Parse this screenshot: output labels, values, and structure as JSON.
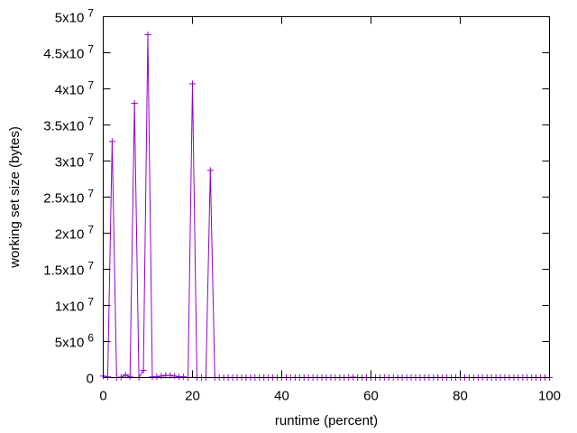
{
  "chart_data": {
    "type": "line",
    "title": "",
    "xlabel": "runtime (percent)",
    "ylabel": "working set size (bytes)",
    "xlim": [
      0,
      100
    ],
    "ylim": [
      0,
      50000000
    ],
    "grid": false,
    "legend": "none",
    "x_ticks": [
      {
        "value": 0,
        "label": "0"
      },
      {
        "value": 20,
        "label": "20"
      },
      {
        "value": 40,
        "label": "40"
      },
      {
        "value": 60,
        "label": "60"
      },
      {
        "value": 80,
        "label": "80"
      },
      {
        "value": 100,
        "label": "100"
      }
    ],
    "y_ticks": [
      {
        "value": 0,
        "mantissa": "0",
        "exp": ""
      },
      {
        "value": 5000000,
        "mantissa": "5x10",
        "exp": "6"
      },
      {
        "value": 10000000,
        "mantissa": "1x10",
        "exp": "7"
      },
      {
        "value": 15000000,
        "mantissa": "1.5x10",
        "exp": "7"
      },
      {
        "value": 20000000,
        "mantissa": "2x10",
        "exp": "7"
      },
      {
        "value": 25000000,
        "mantissa": "2.5x10",
        "exp": "7"
      },
      {
        "value": 30000000,
        "mantissa": "3x10",
        "exp": "7"
      },
      {
        "value": 35000000,
        "mantissa": "3.5x10",
        "exp": "7"
      },
      {
        "value": 40000000,
        "mantissa": "4x10",
        "exp": "7"
      },
      {
        "value": 45000000,
        "mantissa": "4.5x10",
        "exp": "7"
      },
      {
        "value": 50000000,
        "mantissa": "5x10",
        "exp": "7"
      }
    ],
    "color": "#9400d3",
    "series": [
      {
        "x": [
          0,
          1,
          2,
          3,
          4,
          5,
          6,
          7,
          8,
          9,
          10,
          11,
          12,
          13,
          14,
          15,
          16,
          17,
          18,
          19,
          20,
          21,
          22,
          23,
          24,
          25,
          26,
          27,
          28,
          29,
          30,
          31,
          32,
          33,
          34,
          35,
          36,
          37,
          38,
          39,
          40,
          41,
          42,
          43,
          44,
          45,
          46,
          47,
          48,
          49,
          50,
          51,
          52,
          53,
          54,
          55,
          56,
          57,
          58,
          59,
          60,
          61,
          62,
          63,
          64,
          65,
          66,
          67,
          68,
          69,
          70,
          71,
          72,
          73,
          74,
          75,
          76,
          77,
          78,
          79,
          80,
          81,
          82,
          83,
          84,
          85,
          86,
          87,
          88,
          89,
          90,
          91,
          92,
          93,
          94,
          95,
          96,
          97,
          98,
          99,
          100
        ],
        "y": [
          200000,
          100000,
          32700000,
          0,
          50000,
          350000,
          100000,
          38000000,
          0,
          1000000,
          47500000,
          100000,
          100000,
          200000,
          300000,
          300000,
          200000,
          100000,
          100000,
          0,
          40700000,
          0,
          0,
          0,
          28700000,
          0,
          0,
          0,
          0,
          0,
          0,
          0,
          0,
          0,
          0,
          0,
          0,
          0,
          0,
          0,
          0,
          0,
          0,
          0,
          0,
          0,
          0,
          0,
          0,
          0,
          0,
          0,
          0,
          0,
          0,
          0,
          50000,
          0,
          0,
          0,
          0,
          0,
          0,
          0,
          0,
          0,
          0,
          0,
          0,
          0,
          0,
          0,
          0,
          0,
          0,
          0,
          0,
          0,
          0,
          0,
          0,
          0,
          0,
          0,
          0,
          0,
          0,
          0,
          0,
          0,
          0,
          0,
          0,
          0,
          0,
          0,
          0,
          0,
          0,
          0,
          0
        ]
      }
    ]
  }
}
